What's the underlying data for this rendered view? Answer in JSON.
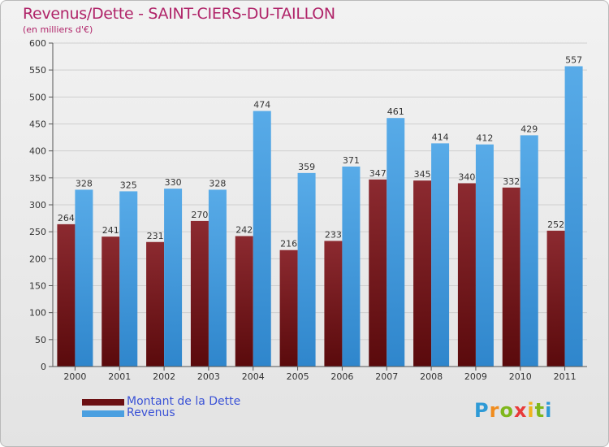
{
  "title": "Revenus/Dette - SAINT-CIERS-DU-TAILLON",
  "subtitle": "(en milliers d'€)",
  "colors": {
    "dette": "#7a1d22",
    "revenus": "#4a9fe0",
    "title": "#b02469",
    "legend_text": "#3a52d6"
  },
  "legend": [
    {
      "label": "Montant de la Dette",
      "color": "#6b0f12"
    },
    {
      "label": "Revenus",
      "color": "#4a9fe0"
    }
  ],
  "logo": {
    "letters": [
      "P",
      "r",
      "o",
      "x",
      "i",
      "t",
      "i"
    ],
    "colors": [
      "#2e9ad6",
      "#f08c1e",
      "#7fb71c",
      "#e83a3a",
      "#f0b41e",
      "#7fb71c",
      "#2e9ad6"
    ]
  },
  "chart_data": {
    "type": "bar",
    "title": "Revenus/Dette - SAINT-CIERS-DU-TAILLON",
    "subtitle": "(en milliers d'€)",
    "categories": [
      "2000",
      "2001",
      "2002",
      "2003",
      "2004",
      "2005",
      "2006",
      "2007",
      "2008",
      "2009",
      "2010",
      "2011"
    ],
    "series": [
      {
        "name": "Montant de la Dette",
        "values": [
          264,
          241,
          231,
          270,
          242,
          216,
          233,
          347,
          345,
          340,
          332,
          252
        ]
      },
      {
        "name": "Revenus",
        "values": [
          328,
          325,
          330,
          328,
          474,
          359,
          371,
          461,
          414,
          412,
          429,
          557
        ]
      }
    ],
    "ylim": [
      0,
      600
    ],
    "yticks": [
      0,
      50,
      100,
      150,
      200,
      250,
      300,
      350,
      400,
      450,
      500,
      550,
      600
    ],
    "grid": true,
    "legend_position": "bottom-left"
  }
}
